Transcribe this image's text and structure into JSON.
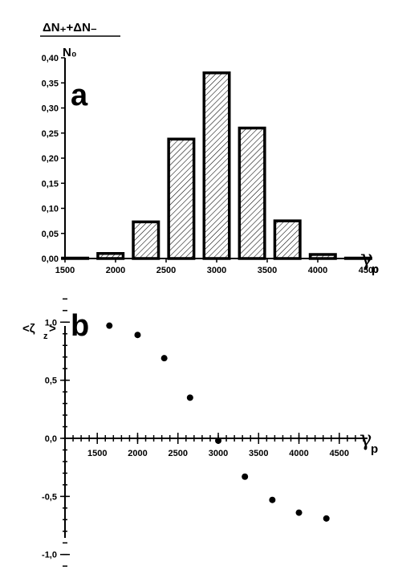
{
  "chart_data": [
    {
      "type": "bar",
      "panel_label": "a",
      "ylabel": {
        "numerator": "ΔN₊+ΔN₋",
        "denominator": "N₀"
      },
      "xlabel": "γ",
      "xlabel_sub": "p",
      "xlim": [
        1500,
        4500
      ],
      "ylim": [
        0,
        0.4
      ],
      "x_ticks": [
        1500,
        2000,
        2500,
        3000,
        3500,
        4000,
        4500
      ],
      "y_ticks": [
        "0,00",
        "0,05",
        "0,10",
        "0,15",
        "0,20",
        "0,25",
        "0,30",
        "0,35",
        "0,40"
      ],
      "bar_width": 250,
      "x": [
        1600,
        1950,
        2300,
        2650,
        3000,
        3350,
        3700,
        4050,
        4400
      ],
      "values": [
        0.0,
        0.01,
        0.073,
        0.238,
        0.37,
        0.26,
        0.075,
        0.008,
        0.0
      ],
      "fill": "hatched",
      "grid": false
    },
    {
      "type": "scatter",
      "panel_label": "b",
      "ylabel": {
        "main": "<ζ",
        "sub": "z",
        "close": ">"
      },
      "xlabel": "γ",
      "xlabel_sub": "p",
      "xlim": [
        1100,
        4850
      ],
      "ylim": [
        -1.3,
        1.25
      ],
      "x_ticks": [
        1500,
        2000,
        2500,
        3000,
        3500,
        4000,
        4500
      ],
      "y_ticks": [
        {
          "value": 1.0,
          "label": "1,0"
        },
        {
          "value": 0.5,
          "label": "0,5"
        },
        {
          "value": 0.0,
          "label": "0,0"
        },
        {
          "value": -0.5,
          "label": "-0,5"
        },
        {
          "value": -1.0,
          "label": "-1,0"
        }
      ],
      "x": [
        1650,
        2000,
        2330,
        2650,
        3000,
        3330,
        3670,
        4000,
        4340
      ],
      "y": [
        0.97,
        0.89,
        0.69,
        0.35,
        -0.02,
        -0.33,
        -0.53,
        -0.64,
        -0.69
      ],
      "grid": false
    }
  ]
}
